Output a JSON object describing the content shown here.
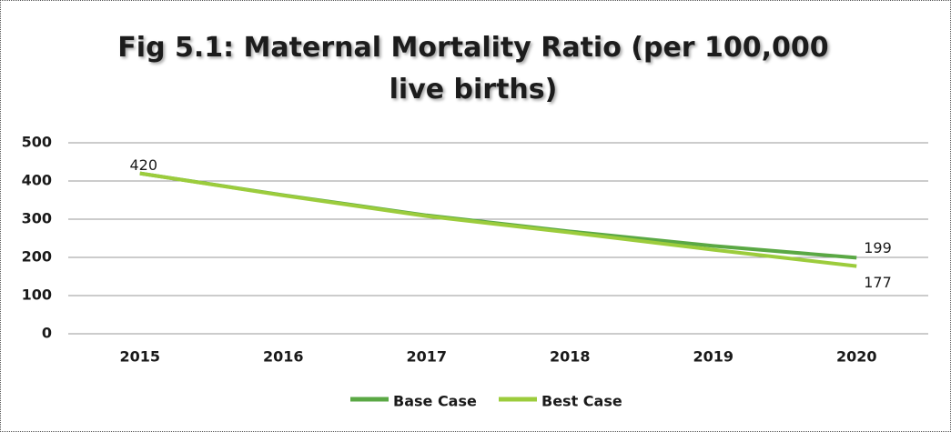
{
  "chart_data": {
    "type": "line",
    "title": "Fig 5.1: Maternal Mortality Ratio (per 100,000 live births)",
    "categories": [
      "2015",
      "2016",
      "2017",
      "2018",
      "2019",
      "2020"
    ],
    "series": [
      {
        "name": "Base Case",
        "color": "#5aa844",
        "values": [
          420,
          363,
          310,
          268,
          230,
          199
        ]
      },
      {
        "name": "Best Case",
        "color": "#9ccc3c",
        "values": [
          420,
          362,
          308,
          265,
          220,
          177
        ]
      }
    ],
    "ylim": [
      0,
      500
    ],
    "yticks": [
      0,
      100,
      200,
      300,
      400,
      500
    ],
    "grid": true,
    "legend": "bottom"
  }
}
